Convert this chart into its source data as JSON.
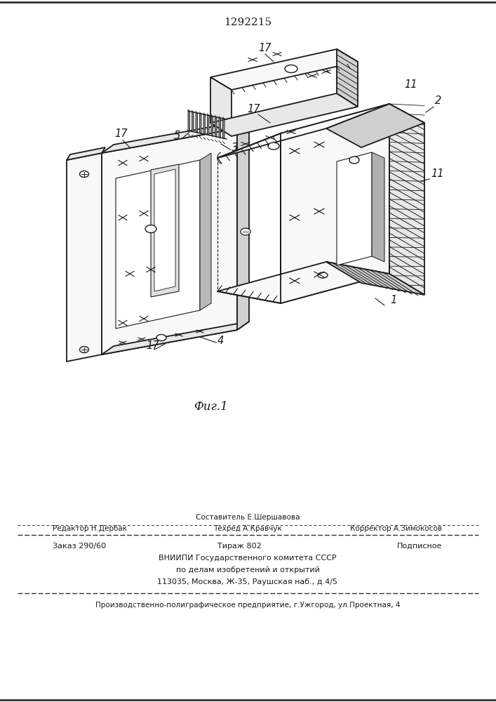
{
  "patent_number": "1292215",
  "fig_label": "Фиг.1",
  "editor_line": "Редактор Н.Дербак",
  "composer_line": "Составитель Е.Шершавова",
  "techred_line": "Техред А.Кравчук",
  "corrector_line": "Корректор А.Зимокосов",
  "order_line": "Заказ 290/60",
  "tirazh_line": "Тираж 802",
  "podpisnoe_line": "Подписное",
  "vnipi_line1": "ВНИИПИ Государственного комитета СССР",
  "vnipi_line2": "по делам изобретений и открытий",
  "vnipi_line3": "113035, Москва, Ж-35, Раушская наб., д.4/5",
  "factory_line": "Производственно-полиграфическое предприятие, г.Ужгород, ул.Проектная, 4",
  "bg_color": "#ffffff",
  "line_color": "#1a1a1a"
}
